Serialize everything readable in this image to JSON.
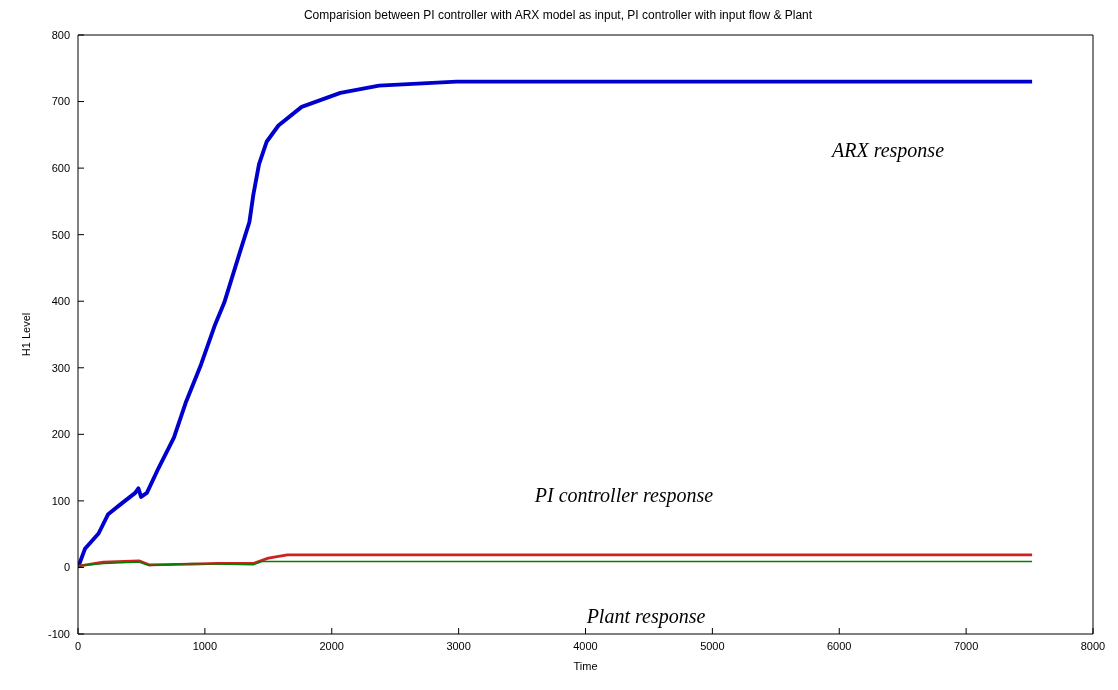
{
  "chart_data": {
    "type": "line",
    "title": "Comparision between PI controller with ARX model as input, PI controller with input flow & Plant",
    "xlabel": "Time",
    "ylabel": "H1 Level",
    "xlim": [
      0,
      8000
    ],
    "xticks": [
      0,
      1000,
      2000,
      3000,
      4000,
      5000,
      6000,
      7000,
      8000
    ],
    "ylim": [
      -100,
      800
    ],
    "yticks": [
      -100,
      0,
      100,
      200,
      300,
      400,
      500,
      600,
      700,
      800
    ],
    "marker": "none",
    "line_style": "solid",
    "series": [
      {
        "color": "#0000cc",
        "x": [
          0,
          55,
          162,
          238,
          330,
          451,
          476,
          497,
          543,
          634,
          756,
          848,
          970,
          1077,
          1153,
          1275,
          1351,
          1382,
          1427,
          1488,
          1580,
          1763,
          2068,
          2373,
          2983,
          4000,
          5000,
          6000,
          7000,
          7520
        ],
        "values": [
          0,
          28,
          51,
          80,
          94,
          112,
          119,
          106,
          112,
          149,
          195,
          247,
          305,
          363,
          398,
          473,
          519,
          560,
          606,
          640,
          664,
          692,
          713,
          724,
          730,
          730,
          730,
          730,
          730,
          730
        ]
      },
      {
        "color": "#cc2222",
        "x": [
          0,
          200,
          480,
          560,
          900,
          1100,
          1380,
          1500,
          1650,
          3000,
          5000,
          7520
        ],
        "values": [
          2,
          8,
          10,
          4,
          5,
          6,
          6,
          14,
          19,
          19,
          19,
          19
        ]
      },
      {
        "color": "#008000",
        "x": [
          0,
          200,
          480,
          560,
          900,
          1100,
          1380,
          1450,
          3000,
          5000,
          7520
        ],
        "values": [
          2,
          6,
          8,
          3,
          6,
          5,
          4,
          9,
          9,
          9,
          9
        ]
      }
    ],
    "annotations": [
      "ARX response",
      "PI controller response",
      "Plant response"
    ]
  }
}
